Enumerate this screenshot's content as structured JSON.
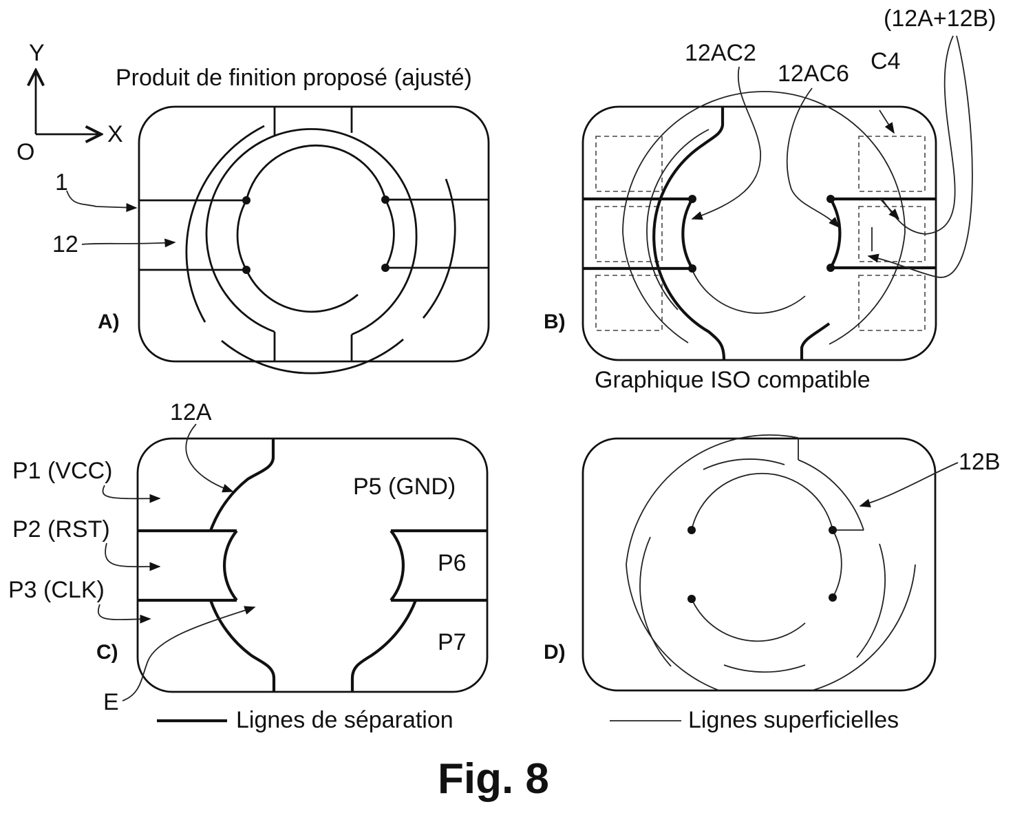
{
  "figure_label": "Fig. 8",
  "axes": {
    "y": "Y",
    "x": "X",
    "origin": "O"
  },
  "panels": {
    "a": {
      "letter": "A)",
      "title": "Produit de finition proposé (ajusté)",
      "ref_1": "1",
      "ref_12": "12"
    },
    "b": {
      "letter": "B)",
      "caption": "Graphique ISO compatible",
      "ref_ac2": "12AC2",
      "ref_ac6": "12AC6",
      "ref_c4": "C4",
      "ref_sum": "(12A+12B)"
    },
    "c": {
      "letter": "C)",
      "ref_12a": "12A",
      "p1": "P1 (VCC)",
      "p2": "P2 (RST)",
      "p3": "P3 (CLK)",
      "p5": "P5 (GND)",
      "p6": "P6",
      "p7": "P7",
      "ref_e": "E"
    },
    "d": {
      "letter": "D)",
      "ref_12b": "12B"
    }
  },
  "legend": {
    "separation": "Lignes de séparation",
    "surface": "Lignes superficielles"
  }
}
